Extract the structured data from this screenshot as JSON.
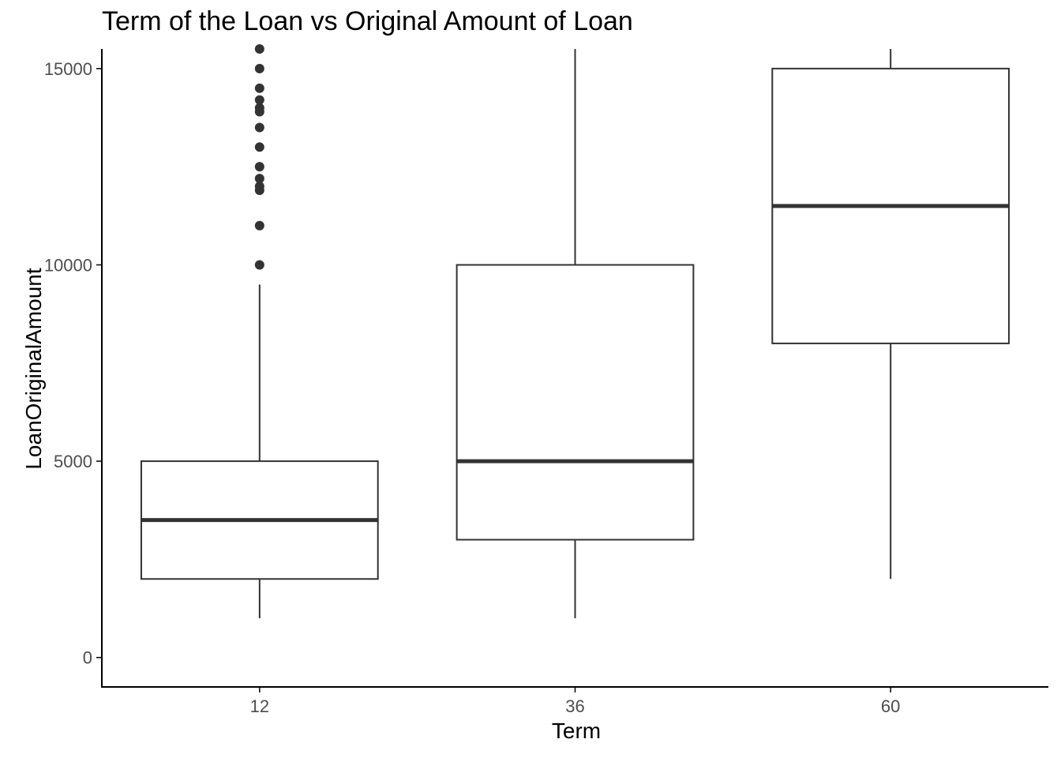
{
  "chart_data": {
    "type": "box",
    "title": "Term of the Loan vs Original Amount of Loan",
    "xlabel": "Term",
    "ylabel": "LoanOriginalAmount",
    "ylim": [
      -750,
      15500
    ],
    "yticks": [
      0,
      5000,
      10000,
      15000
    ],
    "grid": false,
    "categories": [
      "12",
      "36",
      "60"
    ],
    "boxes": [
      {
        "category": "12",
        "whisker_low": 1000,
        "q1": 2000,
        "median": 3500,
        "q3": 5000,
        "whisker_high": 9500,
        "outliers": [
          10000,
          11000,
          11900,
          12000,
          12200,
          12500,
          13000,
          13500,
          13900,
          14000,
          14200,
          14500,
          15000,
          15500
        ]
      },
      {
        "category": "36",
        "whisker_low": 1000,
        "q1": 3000,
        "median": 5000,
        "q3": 10000,
        "whisker_high": 15500,
        "outliers": []
      },
      {
        "category": "60",
        "whisker_low": 2000,
        "q1": 8000,
        "median": 11500,
        "q3": 15000,
        "whisker_high": 15500,
        "outliers": []
      }
    ],
    "colors": {
      "box_line": "#333333",
      "axis": "#000000",
      "tick_label": "#4d4d4d",
      "outlier": "#333333"
    }
  }
}
